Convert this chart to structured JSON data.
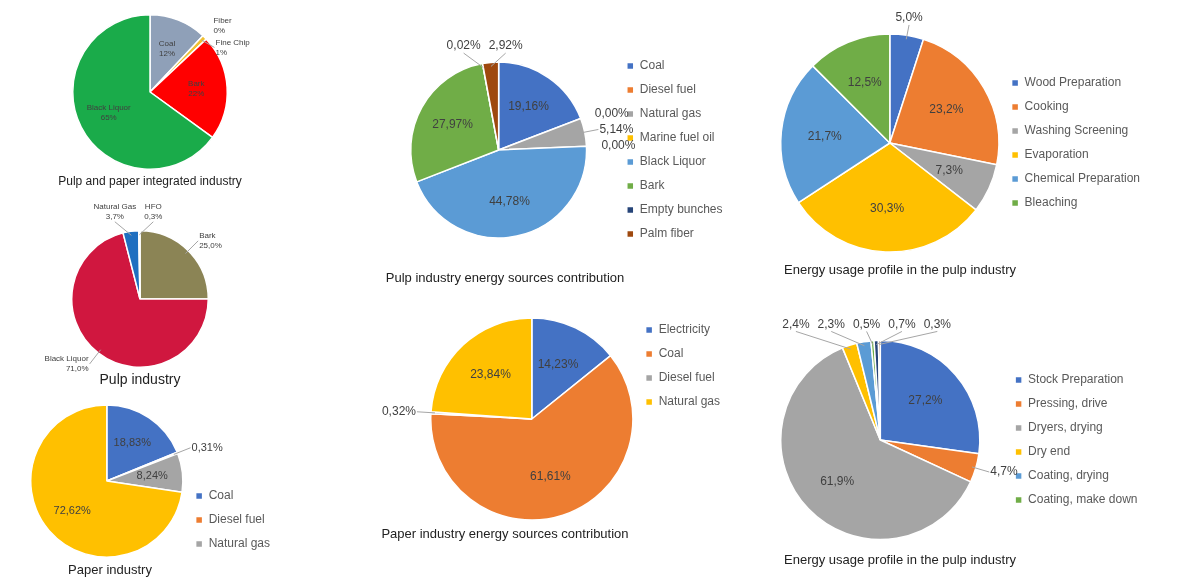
{
  "chart_data": [
    {
      "type": "pie",
      "title": "Pulp and paper integrated industry",
      "categories": [
        "Coal",
        "Fiber",
        "Fine Chip",
        "Bark",
        "Black Liquor"
      ],
      "values": [
        12,
        0,
        1,
        22,
        65
      ],
      "value_labels": [
        "12%",
        "0%",
        "1%",
        "22%",
        "65%"
      ],
      "colors": [
        "#8fa0b8",
        "#b8c4d6",
        "#f0c030",
        "#ff0000",
        "#1aab4a"
      ],
      "legend": false
    },
    {
      "type": "pie",
      "title": "Pulp industry",
      "categories": [
        "Bark",
        "Black Liquor",
        "Natural Gas",
        "HFO"
      ],
      "values": [
        25.0,
        71.0,
        3.7,
        0.3
      ],
      "value_labels": [
        "25,0%",
        "71,0%",
        "3,7%",
        "0,3%"
      ],
      "colors": [
        "#8b8455",
        "#d0173f",
        "#1f6fc0",
        "#a0c8e8"
      ],
      "legend": false
    },
    {
      "type": "pie",
      "title": "Paper industry",
      "categories": [
        "Coal",
        "Diesel fuel",
        "Natural gas",
        null
      ],
      "values": [
        18.83,
        0.31,
        8.24,
        72.62
      ],
      "value_labels": [
        "18,83%",
        "0,31%",
        "8,24%",
        "72,62%"
      ],
      "colors": [
        "#4472c4",
        "#ed7d31",
        "#a5a5a5",
        "#ffc000"
      ],
      "legend": "bottom right"
    },
    {
      "type": "pie",
      "title": "Pulp industry energy sources contribution",
      "categories": [
        "Coal",
        "Diesel fuel",
        "Natural gas",
        "Marine fuel oil",
        "Black Liquor",
        "Bark",
        "Empty bunches",
        "Palm fiber"
      ],
      "values": [
        19.16,
        0.0,
        5.14,
        0.0,
        44.78,
        27.97,
        0.02,
        2.92
      ],
      "value_labels": [
        "19,16%",
        "0,00%",
        "5,14%",
        "0,00%",
        "44,78%",
        "27,97%",
        "0,02%",
        "2,92%"
      ],
      "colors": [
        "#4472c4",
        "#ed7d31",
        "#a5a5a5",
        "#ffc000",
        "#5b9bd5",
        "#70ad47",
        "#264478",
        "#9e480e"
      ],
      "legend": "right"
    },
    {
      "type": "pie",
      "title": "Paper industry energy sources contribution",
      "categories": [
        "Electricity",
        "Coal",
        "Diesel fuel",
        "Natural gas"
      ],
      "values": [
        14.23,
        61.61,
        0.32,
        23.84
      ],
      "value_labels": [
        "14,23%",
        "61,61%",
        "0,32%",
        "23,84%"
      ],
      "colors": [
        "#4472c4",
        "#ed7d31",
        "#a5a5a5",
        "#ffc000"
      ],
      "legend": "top right"
    },
    {
      "type": "pie",
      "title": "Energy usage profile in the pulp industry",
      "categories": [
        "Wood Preparation",
        "Cooking",
        "Washing Screening",
        "Evaporation",
        "Chemical Preparation",
        "Bleaching"
      ],
      "values": [
        5.0,
        23.2,
        7.3,
        30.3,
        21.7,
        12.5
      ],
      "value_labels": [
        "5,0%",
        "23,2%",
        "7,3%",
        "30,3%",
        "21,7%",
        "12,5%"
      ],
      "colors": [
        "#4472c4",
        "#ed7d31",
        "#a5a5a5",
        "#ffc000",
        "#5b9bd5",
        "#70ad47"
      ],
      "legend": "right"
    },
    {
      "type": "pie",
      "title": "Energy usage profile in the pulp industry",
      "categories": [
        "Stock Preparation",
        "Pressing, drive",
        "Dryers, drying",
        "Dry end",
        "Coating, drying",
        "Coating, make down",
        null,
        null
      ],
      "values": [
        27.2,
        4.7,
        61.9,
        2.4,
        2.3,
        0.5,
        0.7,
        0.3
      ],
      "value_labels": [
        "27,2%",
        "4,7%",
        "61,9%",
        "2,4%",
        "2,3%",
        "0,5%",
        "0,7%",
        "0,3%"
      ],
      "colors": [
        "#4472c4",
        "#ed7d31",
        "#a5a5a5",
        "#ffc000",
        "#5b9bd5",
        "#70ad47",
        "#264478",
        "#9e480e"
      ],
      "legend": "right"
    }
  ]
}
